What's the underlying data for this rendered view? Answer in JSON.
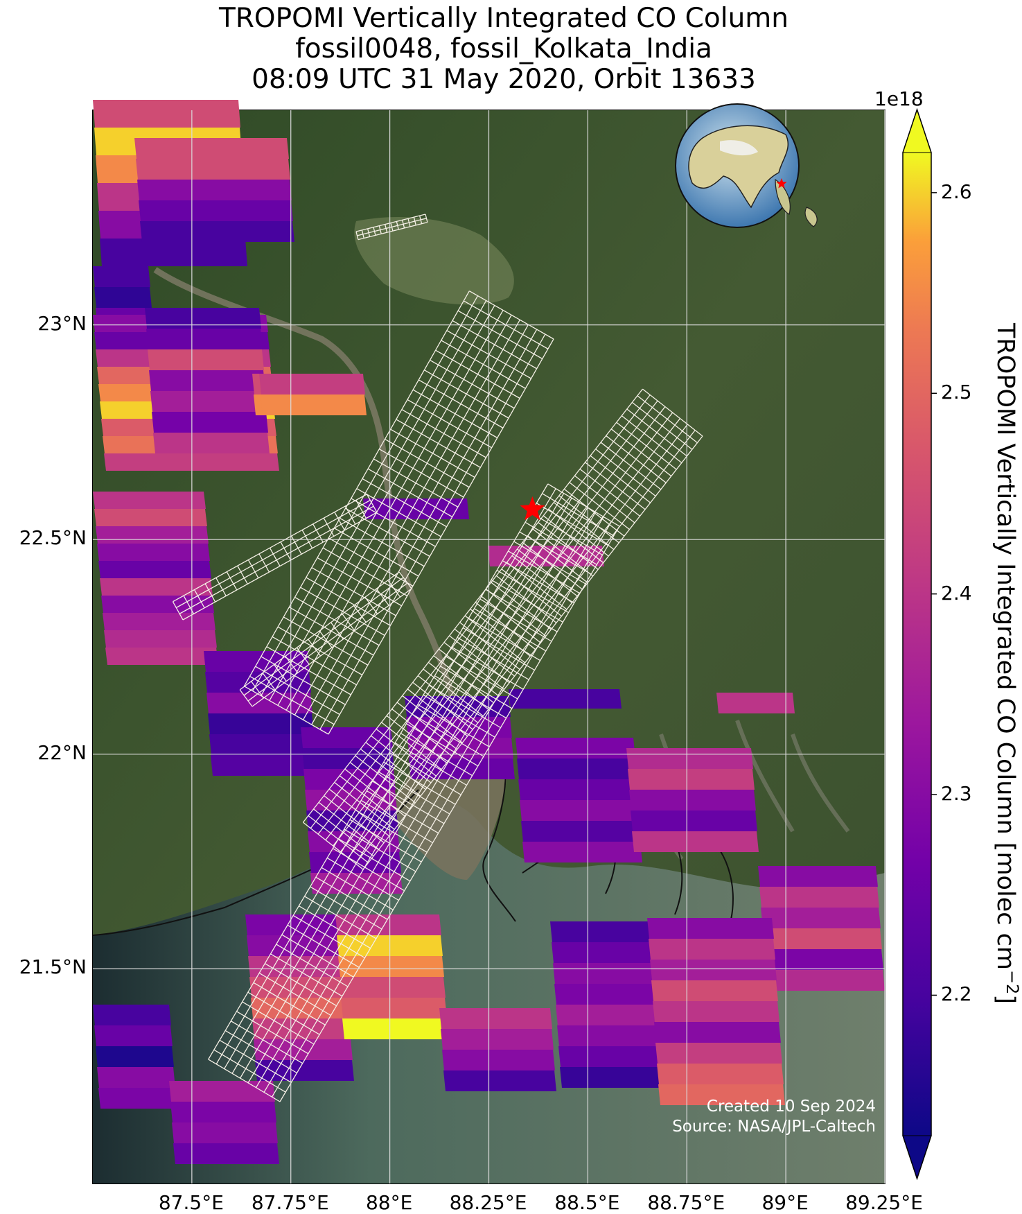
{
  "title": {
    "line1": "TROPOMI Vertically Integrated CO Column",
    "line2": "fossil0048, fossil_Kolkata_India",
    "line3": "08:09 UTC 31 May 2020, Orbit 13633"
  },
  "map": {
    "lon_range": [
      87.25,
      89.25
    ],
    "lat_range": [
      21.0,
      23.5
    ],
    "lat_ticks": [
      {
        "value": 23.0,
        "label": "23°N"
      },
      {
        "value": 22.5,
        "label": "22.5°N"
      },
      {
        "value": 22.0,
        "label": "22°N"
      },
      {
        "value": 21.5,
        "label": "21.5°N"
      }
    ],
    "lon_ticks": [
      {
        "value": 87.5,
        "label": "87.5°E"
      },
      {
        "value": 87.75,
        "label": "87.75°E"
      },
      {
        "value": 88.0,
        "label": "88°E"
      },
      {
        "value": 88.25,
        "label": "88.25°E"
      },
      {
        "value": 88.5,
        "label": "88.5°E"
      },
      {
        "value": 88.75,
        "label": "88.75°E"
      },
      {
        "value": 89.0,
        "label": "89°E"
      },
      {
        "value": 89.25,
        "label": "89.25°E"
      }
    ],
    "grid": true,
    "basemap": "satellite imagery",
    "site_marker": {
      "lon": 88.36,
      "lat": 22.57,
      "symbol": "red star"
    },
    "inset_globe": {
      "position": "top-right",
      "marker": "red star"
    },
    "colors": {
      "land": "#3d5530",
      "water": "#5e7a6c",
      "deep_water": "#1d2f34"
    }
  },
  "colorbar": {
    "colormap": "plasma",
    "min": 2.13,
    "max": 2.62,
    "extend": "both",
    "exponent_label": "1e18",
    "ticks": [
      {
        "value": 2.2,
        "label": "2.2"
      },
      {
        "value": 2.3,
        "label": "2.3"
      },
      {
        "value": 2.4,
        "label": "2.4"
      },
      {
        "value": 2.5,
        "label": "2.5"
      },
      {
        "value": 2.6,
        "label": "2.6"
      }
    ],
    "label": "TROPOMI Vertically Integrated CO Column [molec cm",
    "label_superscript": "−2",
    "label_close": "]"
  },
  "credits": {
    "created": "Created 10 Sep 2024",
    "source": "Source: NASA/JPL-Caltech"
  }
}
